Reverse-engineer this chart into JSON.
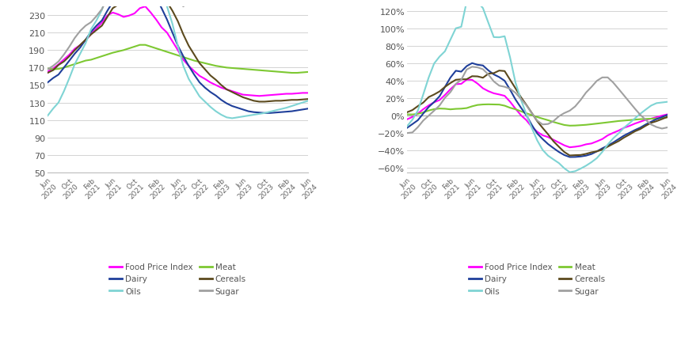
{
  "colors": {
    "Food Price Index": "#FF00FF",
    "Meat": "#7DC832",
    "Dairy": "#1F3F9A",
    "Cereals": "#5C4A1E",
    "Oils": "#7FD4D4",
    "Sugar": "#A0A0A0"
  },
  "ylim1": [
    50,
    240
  ],
  "yticks1": [
    50,
    70,
    90,
    110,
    130,
    150,
    170,
    190,
    210,
    230
  ],
  "ylim2": [
    -0.65,
    1.25
  ],
  "yticks2": [
    -0.6,
    -0.4,
    -0.2,
    0.0,
    0.2,
    0.4,
    0.6,
    0.8,
    1.0,
    1.2
  ],
  "background": "#FFFFFF"
}
